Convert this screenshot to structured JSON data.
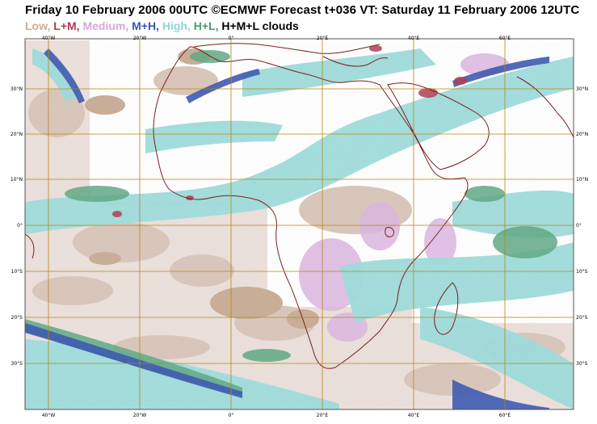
{
  "title": "Friday 10 February 2006 00UTC ©ECMWF Forecast t+036 VT: Saturday 11 February 2006 12UTC",
  "legend": {
    "items": [
      {
        "label": "Low,",
        "color": "#c8ad96"
      },
      {
        "label": "L+M,",
        "color": "#b03a52"
      },
      {
        "label": "Medium,",
        "color": "#d7a6da"
      },
      {
        "label": "M+H,",
        "color": "#3b58b0"
      },
      {
        "label": "High,",
        "color": "#8fd8d6"
      },
      {
        "label": "H+L,",
        "color": "#4d9a72"
      },
      {
        "label": "H+M+L clouds",
        "color": "#000000"
      }
    ]
  },
  "map": {
    "lon_labels_bottom": [
      "40°W",
      "20°W",
      "0°",
      "20°E",
      "40°E",
      "60°E"
    ],
    "lon_labels_top": [
      "40°W",
      "20°W",
      "0°",
      "20°E",
      "40°E",
      "60°E"
    ],
    "lat_labels": [
      "30°N",
      "20°N",
      "10°N",
      "0°",
      "10°S",
      "20°S",
      "30°S"
    ],
    "lon_values": [
      -40,
      -20,
      0,
      20,
      40,
      60
    ],
    "lat_values": [
      30,
      20,
      10,
      0,
      -10,
      -20,
      -30
    ],
    "extent": {
      "lon": [
        -45,
        75
      ],
      "lat": [
        -40,
        40
      ]
    },
    "grid_color": "#b8860b",
    "coast_color": "#7a1f1f",
    "frame_color": "#555555"
  }
}
